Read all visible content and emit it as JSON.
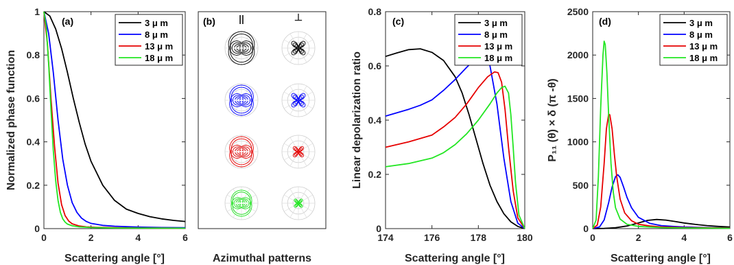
{
  "colors": {
    "black": "#000000",
    "blue": "#0000ff",
    "red": "#e60000",
    "green": "#22e622"
  },
  "chart_data": [
    {
      "panel": "(a)",
      "type": "line",
      "xlabel": "Scattering angle [°]",
      "ylabel": "Normalized phase function",
      "xlim": [
        0,
        6
      ],
      "ylim": [
        0,
        1
      ],
      "xticks": [
        0,
        2,
        4,
        6
      ],
      "yticks": [
        0,
        0.2,
        0.4,
        0.6,
        0.8,
        1
      ],
      "xtick_labels": [
        "0",
        "2",
        "4",
        "6"
      ],
      "ytick_labels": [
        "0",
        "0.2",
        "0.4",
        "0.6",
        "0.8",
        "1"
      ],
      "legend_placement": "top-right",
      "grid": false,
      "series": [
        {
          "name": "3 μ m",
          "color": "#000000",
          "x": [
            0,
            0.25,
            0.5,
            0.75,
            1,
            1.25,
            1.5,
            1.75,
            2,
            2.5,
            3,
            3.5,
            4,
            4.5,
            5,
            5.5,
            6
          ],
          "y": [
            1,
            0.98,
            0.92,
            0.83,
            0.72,
            0.6,
            0.49,
            0.39,
            0.31,
            0.2,
            0.13,
            0.09,
            0.07,
            0.055,
            0.045,
            0.038,
            0.033
          ]
        },
        {
          "name": "8 μ m",
          "color": "#0000ff",
          "x": [
            0,
            0.2,
            0.4,
            0.6,
            0.8,
            1,
            1.2,
            1.4,
            1.6,
            1.8,
            2,
            2.5,
            3,
            4,
            5,
            6
          ],
          "y": [
            1,
            0.9,
            0.72,
            0.5,
            0.32,
            0.2,
            0.12,
            0.075,
            0.048,
            0.033,
            0.024,
            0.015,
            0.011,
            0.007,
            0.005,
            0.004
          ]
        },
        {
          "name": "13 μ m",
          "color": "#e60000",
          "x": [
            0,
            0.15,
            0.3,
            0.45,
            0.6,
            0.75,
            0.9,
            1.05,
            1.2,
            1.5,
            1.8,
            2.2,
            3,
            4,
            6
          ],
          "y": [
            1,
            0.85,
            0.6,
            0.38,
            0.21,
            0.11,
            0.06,
            0.035,
            0.022,
            0.012,
            0.008,
            0.006,
            0.004,
            0.003,
            0.002
          ]
        },
        {
          "name": "18 μ m",
          "color": "#22e622",
          "x": [
            0,
            0.1,
            0.2,
            0.3,
            0.4,
            0.5,
            0.6,
            0.7,
            0.8,
            0.9,
            1,
            1.2,
            1.5,
            2,
            3,
            6
          ],
          "y": [
            1,
            0.93,
            0.76,
            0.55,
            0.36,
            0.22,
            0.13,
            0.075,
            0.045,
            0.03,
            0.021,
            0.013,
            0.008,
            0.005,
            0.003,
            0.002
          ]
        }
      ]
    },
    {
      "panel": "(b)",
      "type": "other",
      "xlabel": "Azimuthal patterns",
      "column_labels": [
        "||",
        "⊥"
      ],
      "rows": [
        "#000000",
        "#0000ff",
        "#e60000",
        "#22e622"
      ]
    },
    {
      "panel": "(c)",
      "type": "line",
      "xlabel": "Scattering angle [°]",
      "ylabel": "Linear depolarization ratio",
      "xlim": [
        174,
        180
      ],
      "ylim": [
        0,
        0.8
      ],
      "xticks": [
        174,
        176,
        178,
        180
      ],
      "yticks": [
        0,
        0.2,
        0.4,
        0.6,
        0.8
      ],
      "xtick_labels": [
        "174",
        "176",
        "178",
        "180"
      ],
      "ytick_labels": [
        "0",
        "0.2",
        "0.4",
        "0.6",
        "0.8"
      ],
      "legend_placement": "top-right",
      "grid": false,
      "series": [
        {
          "name": "3 μ m",
          "color": "#000000",
          "x": [
            174,
            174.5,
            175,
            175.5,
            176,
            176.5,
            177,
            177.3,
            177.6,
            177.9,
            178.2,
            178.5,
            178.8,
            179.1,
            179.4,
            179.7,
            180
          ],
          "y": [
            0.635,
            0.648,
            0.66,
            0.663,
            0.65,
            0.62,
            0.56,
            0.5,
            0.42,
            0.33,
            0.24,
            0.16,
            0.1,
            0.055,
            0.025,
            0.008,
            0
          ]
        },
        {
          "name": "8 μ m",
          "color": "#0000ff",
          "x": [
            174,
            175,
            175.5,
            176,
            176.5,
            177,
            177.5,
            177.8,
            178.1,
            178.3,
            178.5,
            178.8,
            179.1,
            179.4,
            179.7,
            180
          ],
          "y": [
            0.415,
            0.44,
            0.455,
            0.475,
            0.51,
            0.55,
            0.595,
            0.62,
            0.635,
            0.632,
            0.6,
            0.46,
            0.26,
            0.1,
            0.02,
            0
          ]
        },
        {
          "name": "13 μ m",
          "color": "#e60000",
          "x": [
            174,
            175,
            176,
            176.5,
            177,
            177.5,
            178,
            178.4,
            178.7,
            178.85,
            179,
            179.15,
            179.3,
            179.5,
            179.7,
            180
          ],
          "y": [
            0.3,
            0.32,
            0.345,
            0.375,
            0.41,
            0.46,
            0.52,
            0.56,
            0.578,
            0.575,
            0.54,
            0.44,
            0.3,
            0.14,
            0.04,
            0
          ]
        },
        {
          "name": "18 μ m",
          "color": "#22e622",
          "x": [
            174,
            175,
            176,
            176.5,
            177,
            177.5,
            178,
            178.5,
            178.8,
            179,
            179.15,
            179.3,
            179.4,
            179.5,
            179.6,
            179.75,
            180
          ],
          "y": [
            0.228,
            0.24,
            0.26,
            0.28,
            0.31,
            0.35,
            0.4,
            0.46,
            0.5,
            0.52,
            0.525,
            0.5,
            0.42,
            0.3,
            0.17,
            0.05,
            0
          ]
        }
      ]
    },
    {
      "panel": "(d)",
      "type": "line",
      "xlabel": "Scattering angle [°]",
      "ylabel": "P₁₁ (θ) × δ (π -θ)",
      "xlim": [
        0,
        6
      ],
      "ylim": [
        0,
        2500
      ],
      "xticks": [
        0,
        2,
        4,
        6
      ],
      "yticks": [
        0,
        500,
        1000,
        1500,
        2000,
        2500
      ],
      "xtick_labels": [
        "0",
        "2",
        "4",
        "6"
      ],
      "ytick_labels": [
        "0",
        "500",
        "1000",
        "1500",
        "2000",
        "2500"
      ],
      "legend_placement": "top-right",
      "grid": false,
      "series": [
        {
          "name": "3 μ m",
          "color": "#000000",
          "x": [
            0,
            0.5,
            1,
            1.5,
            2,
            2.4,
            2.8,
            3.2,
            3.6,
            4,
            4.5,
            5,
            5.5,
            6
          ],
          "y": [
            0,
            2,
            10,
            30,
            65,
            95,
            105,
            98,
            82,
            65,
            48,
            35,
            25,
            18
          ]
        },
        {
          "name": "8 μ m",
          "color": "#0000ff",
          "x": [
            0,
            0.3,
            0.5,
            0.7,
            0.85,
            1,
            1.1,
            1.2,
            1.35,
            1.5,
            1.7,
            2,
            2.5,
            3,
            3.5,
            4,
            5,
            6
          ],
          "y": [
            0,
            20,
            100,
            300,
            480,
            600,
            620,
            590,
            480,
            360,
            240,
            130,
            60,
            35,
            25,
            18,
            12,
            8
          ]
        },
        {
          "name": "13 μ m",
          "color": "#e60000",
          "x": [
            0,
            0.2,
            0.35,
            0.5,
            0.6,
            0.7,
            0.75,
            0.85,
            0.95,
            1.05,
            1.2,
            1.4,
            1.7,
            2,
            2.5,
            3,
            4,
            6
          ],
          "y": [
            0,
            40,
            250,
            750,
            1150,
            1320,
            1310,
            1150,
            850,
            600,
            340,
            180,
            90,
            50,
            30,
            20,
            12,
            6
          ]
        },
        {
          "name": "18 μ m",
          "color": "#22e622",
          "x": [
            0,
            0.15,
            0.25,
            0.35,
            0.45,
            0.5,
            0.55,
            0.62,
            0.7,
            0.8,
            0.9,
            1,
            1.2,
            1.5,
            2,
            3,
            4,
            6
          ],
          "y": [
            0,
            100,
            600,
            1400,
            2000,
            2160,
            2120,
            1800,
            1300,
            750,
            420,
            240,
            110,
            50,
            25,
            12,
            8,
            4
          ]
        }
      ]
    }
  ]
}
